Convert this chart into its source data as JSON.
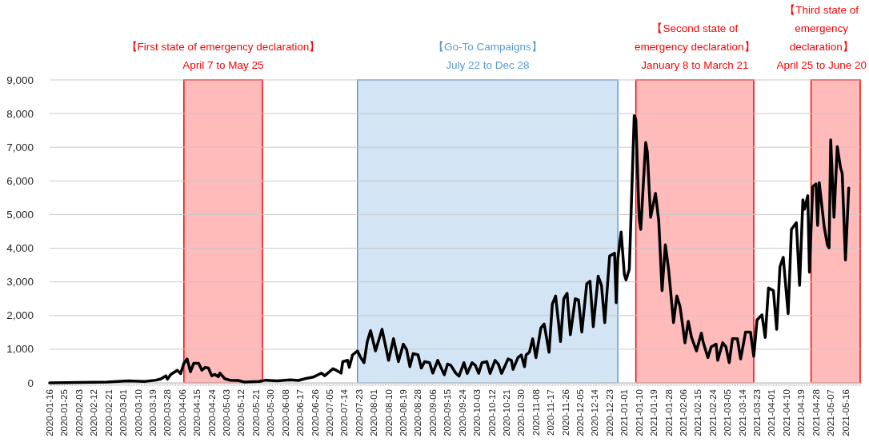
{
  "chart_data": {
    "type": "line",
    "x": [
      "2020-01-16",
      "2020-02-20",
      "2020-03-04",
      "2020-03-14",
      "2020-03-21",
      "2020-03-24",
      "2020-03-27",
      "2020-03-28",
      "2020-03-30",
      "2020-04-03",
      "2020-04-05",
      "2020-04-07",
      "2020-04-09",
      "2020-04-11",
      "2020-04-13",
      "2020-04-16",
      "2020-04-18",
      "2020-04-20",
      "2020-04-22",
      "2020-04-24",
      "2020-04-26",
      "2020-04-28",
      "2020-04-29",
      "2020-05-02",
      "2020-05-05",
      "2020-05-10",
      "2020-05-14",
      "2020-05-23",
      "2020-05-27",
      "2020-06-03",
      "2020-06-11",
      "2020-06-16",
      "2020-06-20",
      "2020-06-25",
      "2020-06-30",
      "2020-07-02",
      "2020-07-07",
      "2020-07-09",
      "2020-07-12",
      "2020-07-13",
      "2020-07-16",
      "2020-07-17",
      "2020-07-19",
      "2020-07-22",
      "2020-07-24",
      "2020-07-26",
      "2020-07-28",
      "2020-07-30",
      "2020-08-02",
      "2020-08-06",
      "2020-08-10",
      "2020-08-13",
      "2020-08-16",
      "2020-08-19",
      "2020-08-21",
      "2020-08-23",
      "2020-08-25",
      "2020-08-28",
      "2020-08-30",
      "2020-09-01",
      "2020-09-04",
      "2020-09-06",
      "2020-09-09",
      "2020-09-13",
      "2020-09-15",
      "2020-09-17",
      "2020-09-20",
      "2020-09-22",
      "2020-09-25",
      "2020-09-27",
      "2020-09-30",
      "2020-10-02",
      "2020-10-04",
      "2020-10-06",
      "2020-10-09",
      "2020-10-11",
      "2020-10-14",
      "2020-10-16",
      "2020-10-18",
      "2020-10-22",
      "2020-10-24",
      "2020-10-25",
      "2020-10-28",
      "2020-10-30",
      "2020-11-01",
      "2020-11-02",
      "2020-11-04",
      "2020-11-06",
      "2020-11-08",
      "2020-11-11",
      "2020-11-13",
      "2020-11-16",
      "2020-11-18",
      "2020-11-20",
      "2020-11-23",
      "2020-11-25",
      "2020-11-27",
      "2020-11-29",
      "2020-12-02",
      "2020-12-04",
      "2020-12-06",
      "2020-12-09",
      "2020-12-11",
      "2020-12-13",
      "2020-12-16",
      "2020-12-18",
      "2020-12-20",
      "2020-12-23",
      "2020-12-26",
      "2020-12-27",
      "2020-12-28",
      "2020-12-30",
      "2021-01-01",
      "2021-01-02",
      "2021-01-04",
      "2021-01-07",
      "2021-01-08",
      "2021-01-10",
      "2021-01-11",
      "2021-01-14",
      "2021-01-15",
      "2021-01-17",
      "2021-01-20",
      "2021-01-22",
      "2021-01-24",
      "2021-01-26",
      "2021-01-28",
      "2021-01-31",
      "2021-02-02",
      "2021-02-04",
      "2021-02-07",
      "2021-02-09",
      "2021-02-11",
      "2021-02-14",
      "2021-02-17",
      "2021-02-18",
      "2021-02-21",
      "2021-02-23",
      "2021-02-26",
      "2021-02-27",
      "2021-03-02",
      "2021-03-04",
      "2021-03-06",
      "2021-03-08",
      "2021-03-11",
      "2021-03-13",
      "2021-03-16",
      "2021-03-19",
      "2021-03-21",
      "2021-03-23",
      "2021-03-26",
      "2021-03-28",
      "2021-03-30",
      "2021-04-02",
      "2021-04-04",
      "2021-04-06",
      "2021-04-08",
      "2021-04-11",
      "2021-04-13",
      "2021-04-16",
      "2021-04-18",
      "2021-04-20",
      "2021-04-21",
      "2021-04-23",
      "2021-04-24",
      "2021-04-26",
      "2021-04-28",
      "2021-04-29",
      "2021-04-30",
      "2021-05-03",
      "2021-05-05",
      "2021-05-06",
      "2021-05-07",
      "2021-05-09",
      "2021-05-11",
      "2021-05-13",
      "2021-05-14",
      "2021-05-16",
      "2021-05-18"
    ],
    "values": [
      0,
      25,
      60,
      40,
      80,
      120,
      210,
      110,
      250,
      375,
      275,
      580,
      710,
      330,
      580,
      580,
      375,
      460,
      440,
      210,
      250,
      180,
      290,
      125,
      80,
      70,
      25,
      40,
      80,
      60,
      90,
      70,
      125,
      170,
      290,
      210,
      420,
      375,
      290,
      630,
      670,
      460,
      830,
      950,
      750,
      600,
      1230,
      1550,
      950,
      1590,
      670,
      1310,
      630,
      1150,
      990,
      480,
      870,
      830,
      440,
      630,
      600,
      290,
      670,
      240,
      560,
      520,
      290,
      200,
      600,
      280,
      600,
      520,
      280,
      600,
      630,
      280,
      670,
      560,
      280,
      710,
      670,
      400,
      750,
      830,
      480,
      830,
      910,
      1310,
      750,
      1630,
      1750,
      910,
      2340,
      2580,
      1230,
      2500,
      2660,
      1430,
      2500,
      2460,
      1510,
      2940,
      3020,
      1670,
      3170,
      2900,
      1790,
      3770,
      3850,
      2380,
      3690,
      4480,
      3210,
      3060,
      3370,
      7940,
      7820,
      4880,
      4560,
      7140,
      6870,
      4920,
      5630,
      4800,
      2740,
      4100,
      3370,
      1790,
      2580,
      2260,
      1190,
      1830,
      1350,
      950,
      1480,
      1230,
      750,
      1070,
      1150,
      670,
      1190,
      1070,
      600,
      1310,
      1310,
      710,
      1510,
      1510,
      790,
      1870,
      2020,
      1350,
      2820,
      2740,
      1590,
      3450,
      3730,
      2060,
      4560,
      4760,
      2900,
      5440,
      5160,
      5560,
      3290,
      5830,
      5910,
      4680,
      5950,
      4640,
      4090,
      4010,
      7220,
      4920,
      7020,
      6390,
      6230,
      3650,
      5790
    ],
    "color": "#000000",
    "line_style": "solid",
    "marker": "none",
    "xlim": [
      "2020-01-16",
      "2021-05-25"
    ],
    "xticks": [
      "2020-01-16",
      "2020-01-25",
      "2020-02-03",
      "2020-02-12",
      "2020-02-21",
      "2020-03-01",
      "2020-03-10",
      "2020-03-19",
      "2020-03-28",
      "2020-04-06",
      "2020-04-15",
      "2020-04-24",
      "2020-05-03",
      "2020-05-12",
      "2020-05-21",
      "2020-05-30",
      "2020-06-08",
      "2020-06-17",
      "2020-06-26",
      "2020-07-05",
      "2020-07-14",
      "2020-07-23",
      "2020-08-01",
      "2020-08-10",
      "2020-08-19",
      "2020-08-28",
      "2020-09-06",
      "2020-09-15",
      "2020-09-24",
      "2020-10-03",
      "2020-10-12",
      "2020-10-21",
      "2020-10-30",
      "2020-11-08",
      "2020-11-17",
      "2020-11-26",
      "2020-12-05",
      "2020-12-14",
      "2020-12-23",
      "2021-01-01",
      "2021-01-10",
      "2021-01-19",
      "2021-01-28",
      "2021-02-06",
      "2021-02-15",
      "2021-02-24",
      "2021-03-05",
      "2021-03-14",
      "2021-03-23",
      "2021-04-01",
      "2021-04-10",
      "2021-04-19",
      "2021-04-28",
      "2021-05-07",
      "2021-05-16"
    ],
    "ylim": [
      0,
      9000
    ],
    "yticks": [
      {
        "value": 0,
        "label": "0"
      },
      {
        "value": 1000,
        "label": "1,000"
      },
      {
        "value": 2000,
        "label": "2,000"
      },
      {
        "value": 3000,
        "label": "3,000"
      },
      {
        "value": 4000,
        "label": "4,000"
      },
      {
        "value": 5000,
        "label": "5,000"
      },
      {
        "value": 6000,
        "label": "6,000"
      },
      {
        "value": 7000,
        "label": "7,000"
      },
      {
        "value": 8000,
        "label": "8,000"
      },
      {
        "value": 9000,
        "label": "9,000"
      }
    ],
    "grid": "y",
    "bands": [
      {
        "axis": "x",
        "from": "2020-04-07",
        "to": "2020-05-25",
        "color": "#ff0000",
        "label": "【First state of emergency declaration】\nApril 7 to May 25"
      },
      {
        "axis": "x",
        "from": "2020-07-22",
        "to": "2020-12-28",
        "color": "#5b9bd5",
        "label": "【Go-To Campaigns】\nJuly 22 to Dec 28"
      },
      {
        "axis": "x",
        "from": "2021-01-08",
        "to": "2021-03-21",
        "color": "#ff0000",
        "label": "【Second state of\nemergency declaration】\nJanuary 8 to March 21"
      },
      {
        "axis": "x",
        "from": "2021-04-25",
        "to": "2021-05-25",
        "color": "#ff0000",
        "label": "【Third state of\nemergency\ndeclaration】\nApril 25 to June 20"
      }
    ]
  }
}
